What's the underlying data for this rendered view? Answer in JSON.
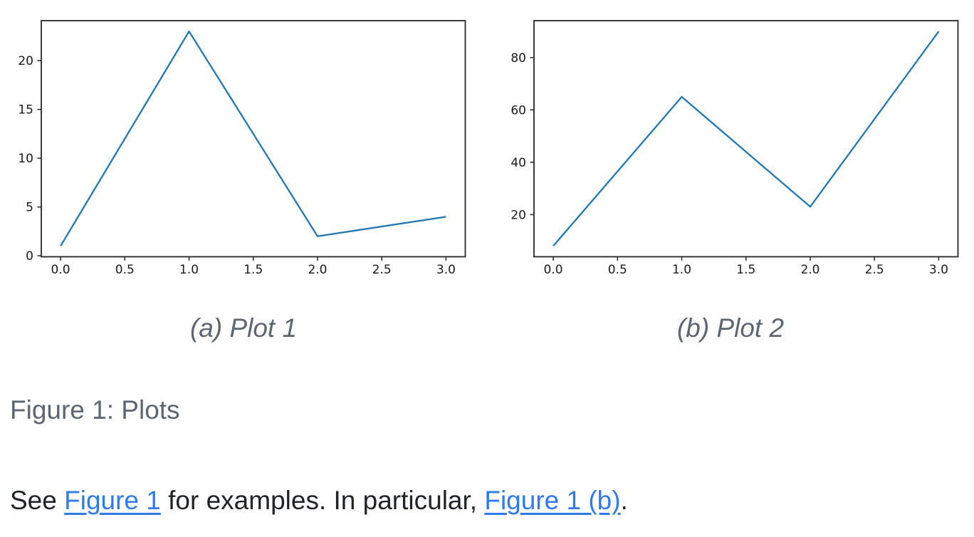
{
  "figure": {
    "caption": "Figure 1: Plots",
    "subfigures": [
      {
        "caption": "(a) Plot 1"
      },
      {
        "caption": "(b) Plot 2"
      }
    ]
  },
  "paragraph": {
    "segments": [
      {
        "text": "See "
      },
      {
        "text": "Figure 1",
        "link": true
      },
      {
        "text": " for examples. In particular, "
      },
      {
        "text": "Figure 1 (b)",
        "link": true
      },
      {
        "text": "."
      }
    ]
  },
  "colors": {
    "line": "#1f77b4",
    "link": "#2e7bf0",
    "body_text": "#1f2328",
    "muted_text": "#5b6672",
    "axis": "#262626",
    "tick_label": "#1a1a1a"
  },
  "chart_data": [
    {
      "type": "line",
      "title": "",
      "xlabel": "",
      "ylabel": "",
      "x": [
        0,
        1,
        2,
        3
      ],
      "y": [
        1,
        23,
        2,
        4
      ],
      "xlim": [
        -0.15,
        3.15
      ],
      "ylim": [
        -0.1,
        24.1
      ],
      "xticks": {
        "values": [
          0,
          0.5,
          1,
          1.5,
          2,
          2.5,
          3
        ],
        "labels": [
          "0.0",
          "0.5",
          "1.0",
          "1.5",
          "2.0",
          "2.5",
          "3.0"
        ]
      },
      "yticks": {
        "values": [
          0,
          5,
          10,
          15,
          20
        ],
        "labels": [
          "0",
          "5",
          "10",
          "15",
          "20"
        ]
      },
      "line_color": "#1f77b4",
      "grid": false,
      "legend": null
    },
    {
      "type": "line",
      "title": "",
      "xlabel": "",
      "ylabel": "",
      "x": [
        0,
        1,
        2,
        3
      ],
      "y": [
        8,
        65,
        23,
        90
      ],
      "xlim": [
        -0.15,
        3.15
      ],
      "ylim": [
        3.9,
        94.1
      ],
      "xticks": {
        "values": [
          0,
          0.5,
          1,
          1.5,
          2,
          2.5,
          3
        ],
        "labels": [
          "0.0",
          "0.5",
          "1.0",
          "1.5",
          "2.0",
          "2.5",
          "3.0"
        ]
      },
      "yticks": {
        "values": [
          20,
          40,
          60,
          80
        ],
        "labels": [
          "20",
          "40",
          "60",
          "80"
        ]
      },
      "line_color": "#1f77b4",
      "grid": false,
      "legend": null
    }
  ]
}
